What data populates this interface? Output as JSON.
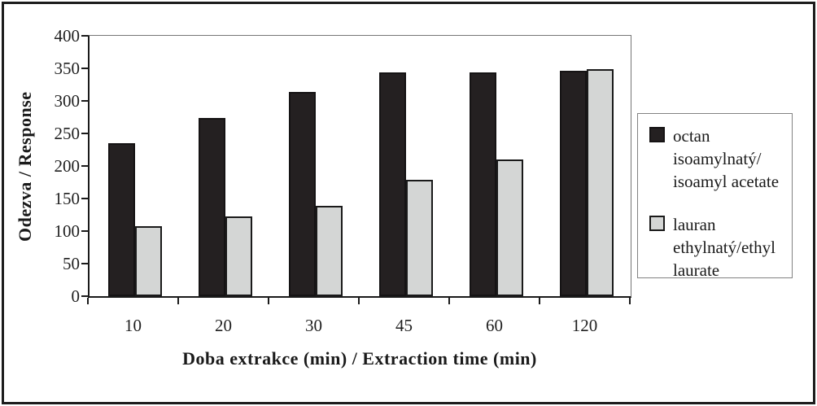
{
  "chart_data": {
    "type": "bar",
    "title": "",
    "categories": [
      "10",
      "20",
      "30",
      "45",
      "60",
      "120"
    ],
    "series": [
      {
        "name": "octan isoamylnatý/ isoamyl acetate",
        "color": "#242021",
        "values": [
          235,
          274,
          314,
          344,
          344,
          346
        ]
      },
      {
        "name": "lauran ethylnatý/ethyl laurate",
        "color": "#d4d6d5",
        "values": [
          107,
          122,
          139,
          179,
          210,
          349
        ]
      }
    ],
    "xlabel": "Doba extrakce (min) / Extraction time (min)",
    "ylabel": "Odezva / Response",
    "ylim": [
      0,
      400
    ],
    "y_ticks": [
      0,
      50,
      100,
      150,
      200,
      250,
      300,
      350,
      400
    ],
    "grid": false,
    "legend_position": "right",
    "plot_background": "#ffffff"
  },
  "legend": {
    "entries": [
      {
        "swatch": "black-square-swatch",
        "label": "octan\nisoamylnatý/\nisoamyl acetate"
      },
      {
        "swatch": "gray-square-swatch",
        "label": "lauran\nethylnatý/ethyl\nlaurate"
      }
    ]
  },
  "colors": {
    "series_black": "#242021",
    "series_gray": "#d4d6d5",
    "axis_line": "#1a1a1a",
    "frame_border": "#1c1c1c",
    "legend_border": "#828282",
    "text": "#1f1f1f"
  }
}
